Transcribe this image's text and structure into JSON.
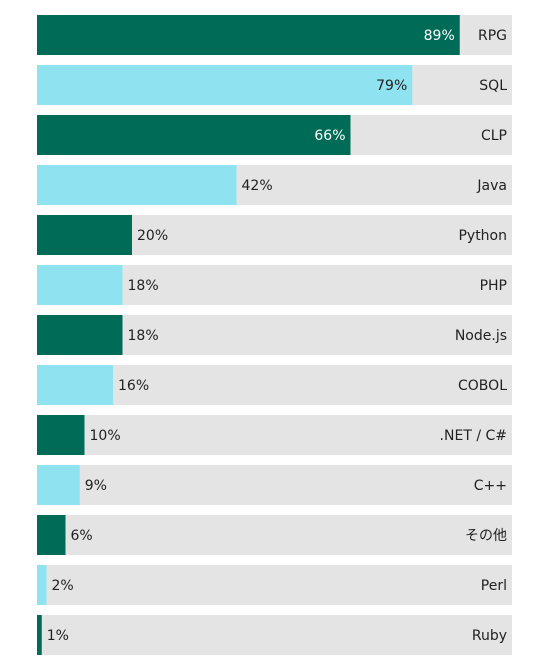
{
  "chart_data": {
    "type": "bar",
    "orientation": "horizontal",
    "xlim": [
      0,
      100
    ],
    "categories": [
      "RPG",
      "SQL",
      "CLP",
      "Java",
      "Python",
      "PHP",
      "Node.js",
      "COBOL",
      ".NET / C#",
      "C++",
      "その他",
      "Perl",
      "Ruby"
    ],
    "values": [
      89,
      79,
      66,
      42,
      20,
      18,
      18,
      16,
      10,
      9,
      6,
      2,
      1
    ],
    "value_labels": [
      "89%",
      "79%",
      "66%",
      "42%",
      "20%",
      "18%",
      "18%",
      "16%",
      "10%",
      "9%",
      "6%",
      "2%",
      "1%"
    ],
    "colors": [
      "#006B56",
      "#8FE3F0",
      "#006B56",
      "#8FE3F0",
      "#006B56",
      "#8FE3F0",
      "#006B56",
      "#8FE3F0",
      "#006B56",
      "#8FE3F0",
      "#006B56",
      "#8FE3F0",
      "#006B56"
    ],
    "track_color": "#E4E4E4",
    "grid": false,
    "legend": "none"
  }
}
